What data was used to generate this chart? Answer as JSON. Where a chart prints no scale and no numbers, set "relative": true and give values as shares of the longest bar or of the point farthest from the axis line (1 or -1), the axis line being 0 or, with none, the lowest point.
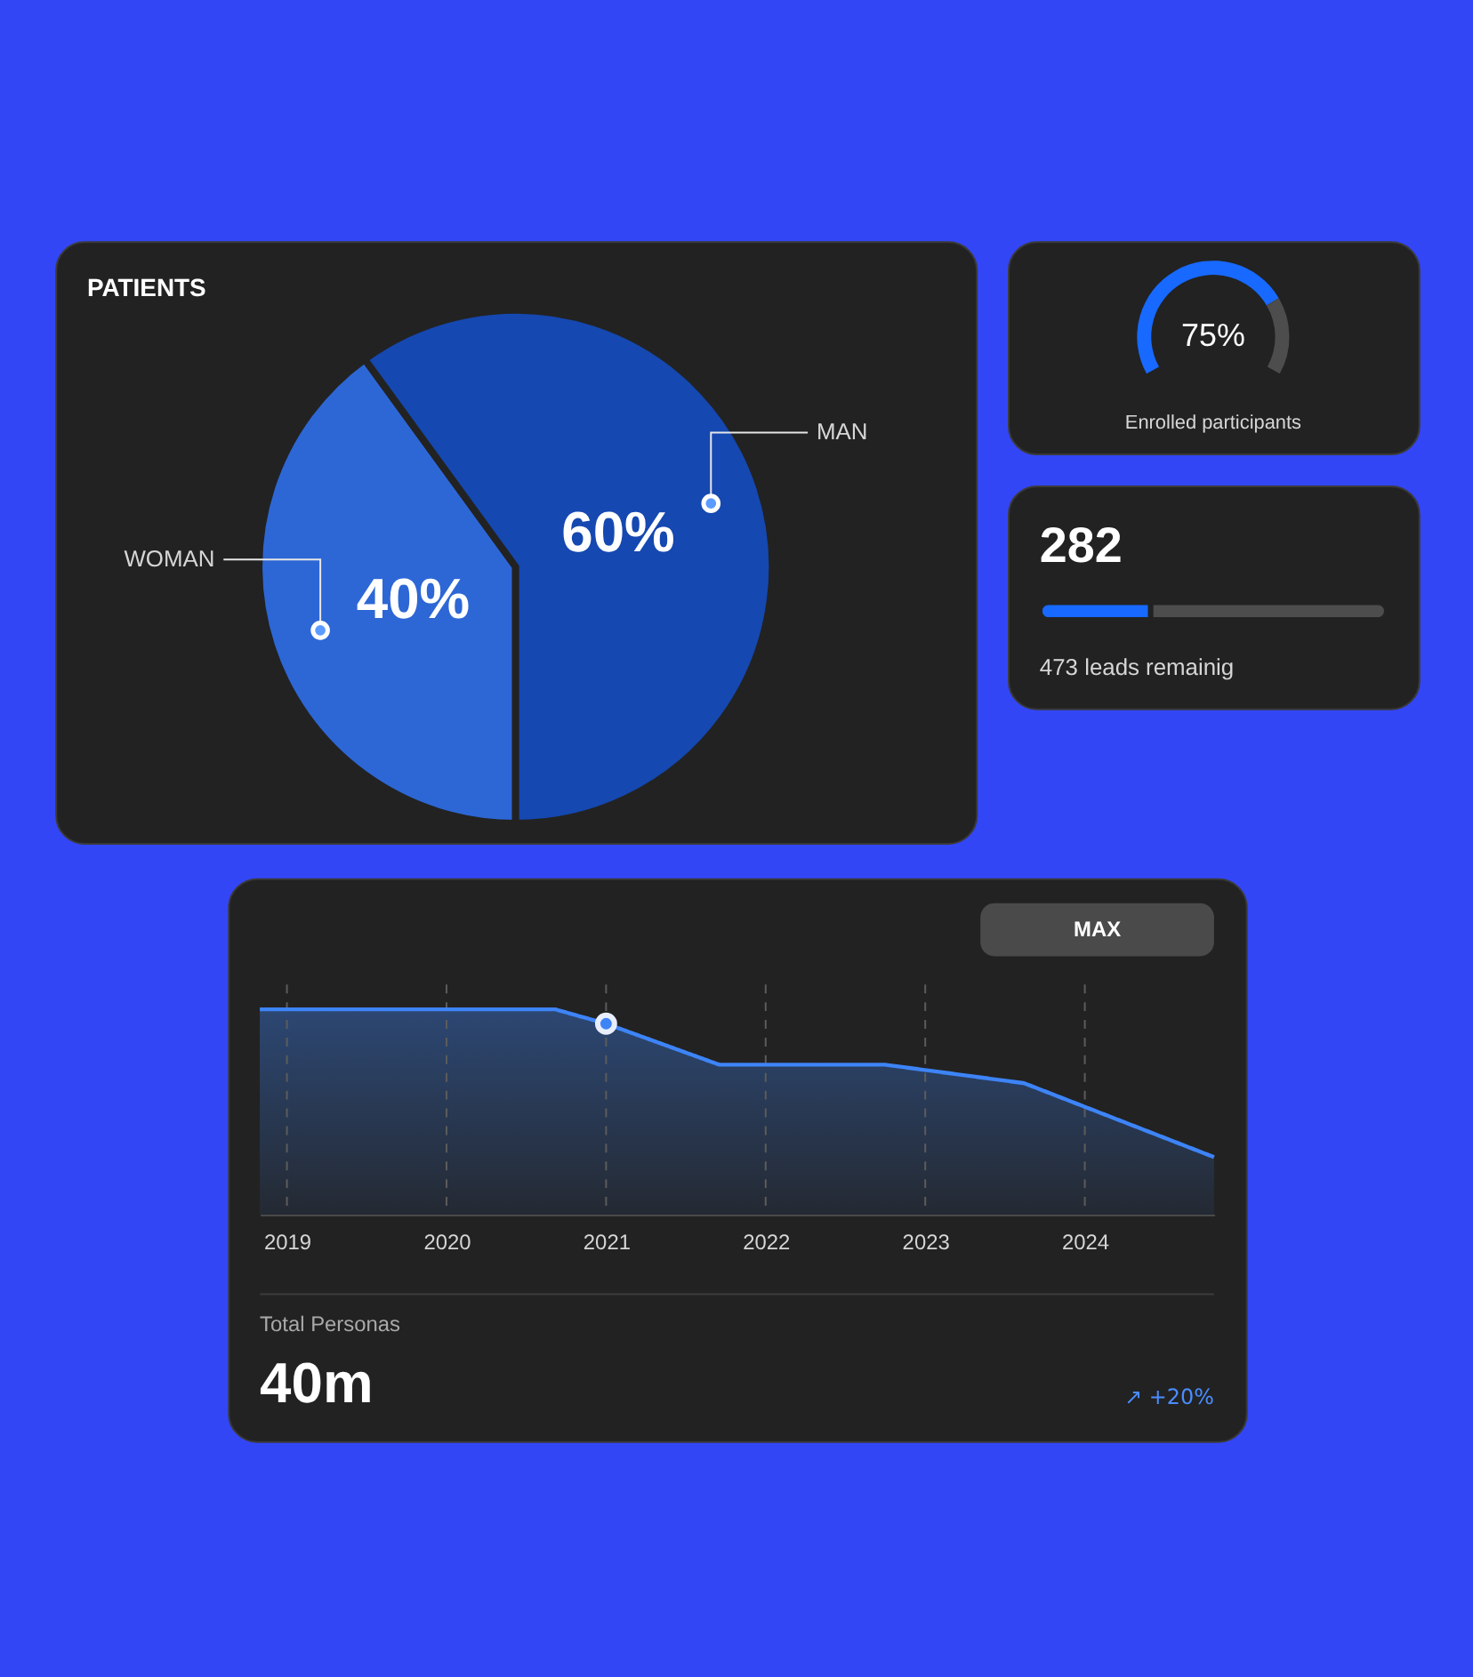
{
  "chart_data": [
    {
      "type": "pie",
      "title": "PATIENTS",
      "categories": [
        "WOMAN",
        "MAN"
      ],
      "values": [
        40,
        60
      ],
      "colors": [
        "#2d67d6",
        "#1548b0"
      ],
      "value_labels": [
        "40%",
        "60%"
      ]
    },
    {
      "type": "donut",
      "title": "Enrolled participants",
      "categories": [
        null,
        null
      ],
      "values": [
        75,
        25
      ],
      "colors": [
        "#1769ff",
        "#4d4d4d"
      ],
      "value_labels": [
        "75%",
        null
      ]
    },
    {
      "type": "bar",
      "orientation": "horizontal",
      "stacked": true,
      "relative": true,
      "categories": [
        null
      ],
      "series": [
        {
          "color": "#1769ff",
          "values": [
            0.32
          ]
        },
        {
          "color": "#4d4d4d",
          "values": [
            0.68
          ]
        }
      ],
      "annotations": [
        "282",
        "473 leads remainig"
      ]
    },
    {
      "type": "area",
      "relative": true,
      "x": [
        2018.83,
        2020.68,
        2021,
        2021.71,
        2022.75,
        2023.62,
        2024.81
      ],
      "xlim": [
        2018.83,
        2024.81
      ],
      "xticks": [
        2019,
        2020,
        2021,
        2022,
        2023,
        2024
      ],
      "grid": "x",
      "tick_labels": "x",
      "series": [
        {
          "type": "area",
          "color": "#3d84f7",
          "values": [
            1,
            1,
            0.93,
            0.73,
            0.73,
            0.64,
            0.28
          ]
        },
        {
          "type": "scatter",
          "color": "#3d84f7",
          "marker": "circle",
          "x": [
            2021
          ],
          "values": [
            0.93
          ]
        }
      ],
      "annotations": [
        "MAX",
        "Total Personas",
        "40m",
        "↗ +20%"
      ]
    }
  ]
}
